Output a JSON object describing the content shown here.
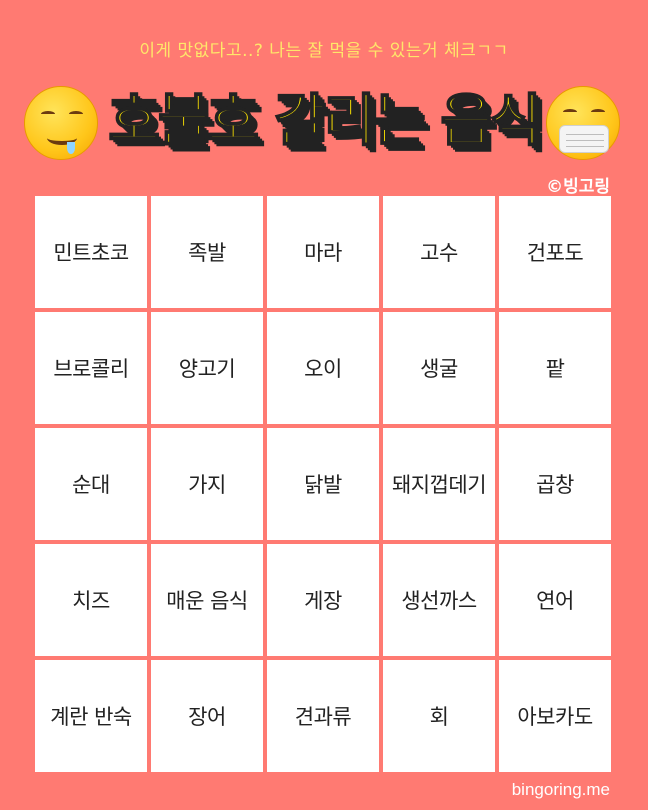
{
  "header": {
    "subtitle": "이게 맛없다고..? 나는 잘 먹을 수 있는거 체크ㄱㄱ",
    "title": "호불호 갈리는 음식",
    "left_emoji": "drooling-face-icon",
    "right_emoji": "face-with-medical-mask-icon",
    "copyright": "©빙고링"
  },
  "grid": {
    "cells": [
      "민트초코",
      "족발",
      "마라",
      "고수",
      "건포도",
      "브로콜리",
      "양고기",
      "오이",
      "생굴",
      "팥",
      "순대",
      "가지",
      "닭발",
      "돼지껍데기",
      "곱창",
      "치즈",
      "매운 음식",
      "게장",
      "생선까스",
      "연어",
      "계란 반숙",
      "장어",
      "견과류",
      "회",
      "아보카도"
    ]
  },
  "footer": {
    "site": "bingoring.me"
  },
  "colors": {
    "background": "#ff7a72",
    "title": "#ffe600",
    "subtitle": "#ffe76a",
    "cell": "#ffffff"
  }
}
